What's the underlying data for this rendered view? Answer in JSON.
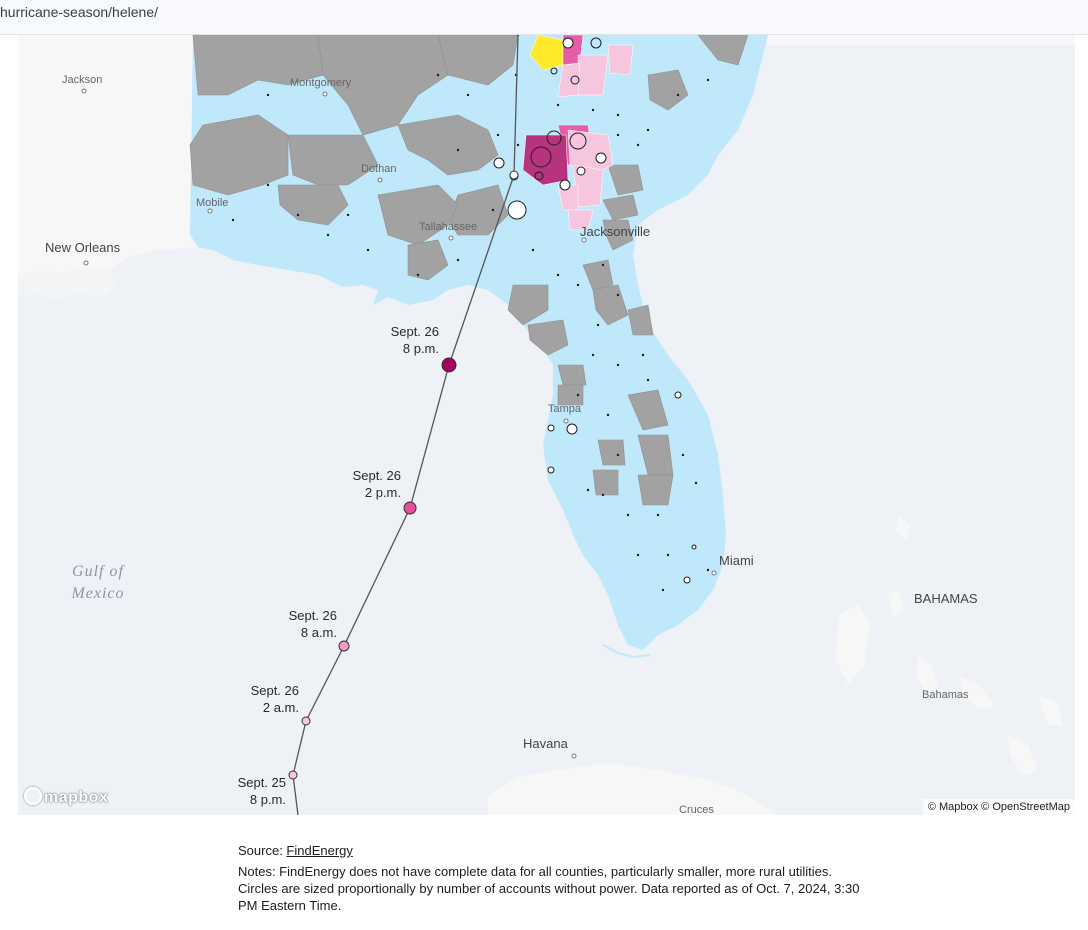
{
  "browser": {
    "url_fragment": "hurricane-season/helene/"
  },
  "colors": {
    "water": "#eef1f6",
    "land_outside": "#f7f7f7",
    "county_low": "#bfe8fb",
    "county_nodata": "#a2a2a2",
    "county_mid": "#f6c6df",
    "county_high": "#e55ca7",
    "county_max": "#b8337d",
    "county_yellow": "#ffe92b",
    "track": "#555555",
    "point_late": "#a3005f",
    "point_mid": "#e94e9b",
    "point_early": "#f59ac8",
    "point_earliest": "#fbc6df"
  },
  "map": {
    "cities": {
      "jackson": "Jackson",
      "montgomery": "Montgomery",
      "dothan": "Dothan",
      "mobile": "Mobile",
      "new_orleans": "New Orleans",
      "tallahassee": "Tallahassee",
      "jacksonville": "Jacksonville",
      "tampa": "Tampa",
      "miami": "Miami",
      "havana": "Havana",
      "cruces": "Cruces",
      "bahamas_small": "Bahamas"
    },
    "water_labels": {
      "gulf_line1": "Gulf of",
      "gulf_line2": "Mexico"
    },
    "country_labels": {
      "bahamas": "BAHAMAS"
    },
    "track_points": [
      {
        "line1": "Sept. 26",
        "line2": "8 p.m."
      },
      {
        "line1": "Sept. 26",
        "line2": "2 p.m."
      },
      {
        "line1": "Sept. 26",
        "line2": "8 a.m."
      },
      {
        "line1": "Sept. 26",
        "line2": "2 a.m."
      },
      {
        "line1": "Sept. 25",
        "line2": "8 p.m."
      }
    ],
    "attribution": "© Mapbox © OpenStreetMap",
    "logo": "mapbox"
  },
  "footer": {
    "source_label": "Source: ",
    "source_link": "FindEnergy",
    "notes_line1": "Notes: FindEnergy does not have complete data for all counties, particularly smaller, more rural utilities.",
    "notes_line2": "Circles are sized proportionally by number of accounts without power. Data reported as of Oct. 7, 2024, 3:30 PM Eastern Time."
  }
}
